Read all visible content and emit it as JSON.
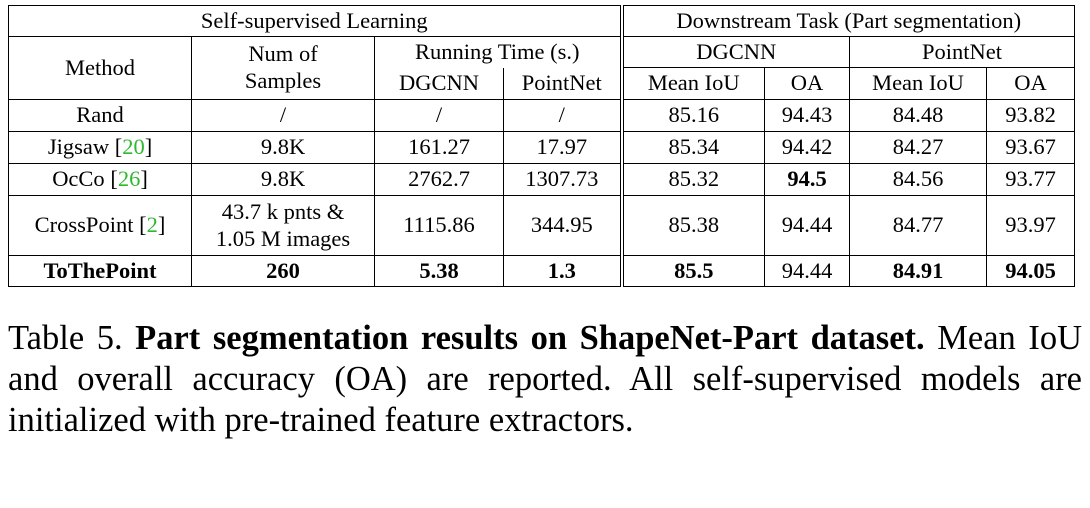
{
  "table": {
    "header": {
      "ssl_group": "Self-supervised Learning",
      "downstream_group": "Downstream Task (Part segmentation)",
      "method": "Method",
      "num_samples_line1": "Num of",
      "num_samples_line2": "Samples",
      "running_time": "Running Time (s.)",
      "dgcnn": "DGCNN",
      "pointnet": "PointNet",
      "mean_iou": "Mean IoU",
      "oa": "OA"
    },
    "rows": [
      {
        "method": "Rand",
        "cite": "",
        "samples_line1": "/",
        "samples_line2": "",
        "rt_dgcnn": "/",
        "rt_pointnet": "/",
        "dg_miou": "85.16",
        "dg_oa": "94.43",
        "pn_miou": "84.48",
        "pn_oa": "93.82"
      },
      {
        "method": "Jigsaw ",
        "cite": "20",
        "samples_line1": "9.8K",
        "samples_line2": "",
        "rt_dgcnn": "161.27",
        "rt_pointnet": "17.97",
        "dg_miou": "85.34",
        "dg_oa": "94.42",
        "pn_miou": "84.27",
        "pn_oa": "93.67"
      },
      {
        "method": "OcCo ",
        "cite": "26",
        "samples_line1": "9.8K",
        "samples_line2": "",
        "rt_dgcnn": "2762.7",
        "rt_pointnet": "1307.73",
        "dg_miou": "85.32",
        "dg_oa": "94.5",
        "pn_miou": "84.56",
        "pn_oa": "93.77"
      },
      {
        "method": "CrossPoint ",
        "cite": "2",
        "samples_line1": "43.7 k pnts &",
        "samples_line2": "1.05 M images",
        "rt_dgcnn": "1115.86",
        "rt_pointnet": "344.95",
        "dg_miou": "85.38",
        "dg_oa": "94.44",
        "pn_miou": "84.77",
        "pn_oa": "93.97"
      },
      {
        "method": "ToThePoint",
        "cite": "",
        "samples_line1": "260",
        "samples_line2": "",
        "rt_dgcnn": "5.38",
        "rt_pointnet": "1.3",
        "dg_miou": "85.5",
        "dg_oa": "94.44",
        "pn_miou": "84.91",
        "pn_oa": "94.05"
      }
    ]
  },
  "caption": {
    "label": "Table 5.",
    "title": "Part segmentation results on ShapeNet-Part dataset.",
    "text": "Mean IoU and overall accuracy (OA) are reported. All self-supervised models are initialized with pre-trained feature extractors."
  }
}
